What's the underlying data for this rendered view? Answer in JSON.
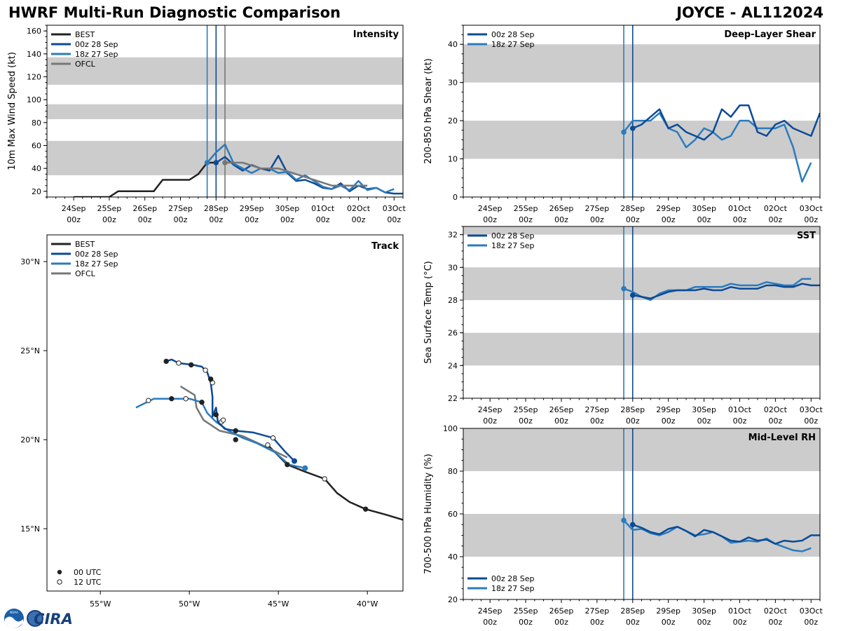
{
  "header": {
    "title": "HWRF Multi-Run Diagnostic Comparison",
    "storm": "JOYCE - AL112024"
  },
  "logo": {
    "text": "CIRA",
    "agency": "NOAA"
  },
  "colors": {
    "BEST": "#222222",
    "00z 28 Sep": "#0b4a96",
    "18z 27 Sep": "#2b7bbd",
    "OFCL": "#777777",
    "band": "#cccccc"
  },
  "time_ticks": [
    {
      "day": 0,
      "l1": "24Sep",
      "l2": "00z"
    },
    {
      "day": 1,
      "l1": "25Sep",
      "l2": "00z"
    },
    {
      "day": 2,
      "l1": "26Sep",
      "l2": "00z"
    },
    {
      "day": 3,
      "l1": "27Sep",
      "l2": "00z"
    },
    {
      "day": 4,
      "l1": "28Sep",
      "l2": "00z"
    },
    {
      "day": 5,
      "l1": "29Sep",
      "l2": "00z"
    },
    {
      "day": 6,
      "l1": "30Sep",
      "l2": "00z"
    },
    {
      "day": 7,
      "l1": "01Oct",
      "l2": "00z"
    },
    {
      "day": 8,
      "l1": "02Oct",
      "l2": "00z"
    },
    {
      "day": 9,
      "l1": "03Oct",
      "l2": "00z"
    }
  ],
  "chart_data": [
    {
      "id": "intensity",
      "type": "line",
      "title": "Intensity",
      "ylabel": "10m Max Wind Speed (kt)",
      "xlim": [
        -0.75,
        9.25
      ],
      "ylim": [
        15,
        165
      ],
      "yticks": [
        20,
        40,
        60,
        80,
        100,
        120,
        140,
        160
      ],
      "bands": [
        [
          34,
          64
        ],
        [
          83,
          96
        ],
        [
          113,
          137
        ]
      ],
      "vlines": [
        {
          "x": 3.75,
          "series": "18z 27 Sep"
        },
        {
          "x": 4.0,
          "series": "00z 28 Sep"
        },
        {
          "x": 4.25,
          "series": "OFCL"
        }
      ],
      "legend": [
        "BEST",
        "00z 28 Sep",
        "18z 27 Sep",
        "OFCL"
      ],
      "legend_position": "top-left",
      "series": [
        {
          "name": "BEST",
          "x": [
            0.0,
            0.25,
            0.5,
            0.75,
            1.0,
            1.25,
            1.5,
            1.75,
            2.0,
            2.25,
            2.5,
            2.75,
            3.0,
            3.25,
            3.5,
            3.75,
            4.0
          ],
          "y": [
            15,
            15,
            15,
            15,
            15,
            20,
            20,
            20,
            20,
            20,
            30,
            30,
            30,
            30,
            35,
            45,
            45
          ]
        },
        {
          "name": "00z 28 Sep",
          "x": [
            4.0,
            4.25,
            4.5,
            4.75,
            5.0,
            5.25,
            5.5,
            5.75,
            6.0,
            6.25,
            6.5,
            6.75,
            7.0,
            7.25,
            7.5,
            7.75,
            8.0,
            8.25,
            8.5,
            8.75,
            9.0,
            9.25
          ],
          "y": [
            45,
            50,
            43,
            38,
            43,
            40,
            38,
            51,
            36,
            29,
            30,
            27,
            23,
            22,
            27,
            20,
            25,
            22,
            23,
            19,
            18,
            18
          ],
          "marker": 0
        },
        {
          "name": "18z 27 Sep",
          "x": [
            3.75,
            4.0,
            4.25,
            4.5,
            4.75,
            5.0,
            5.25,
            5.5,
            5.75,
            6.0,
            6.25,
            6.5,
            6.75,
            7.0,
            7.25,
            7.5,
            7.75,
            8.0,
            8.25,
            8.5,
            8.75,
            9.0
          ],
          "y": [
            45,
            54,
            61,
            44,
            40,
            36,
            40,
            40,
            36,
            37,
            30,
            34,
            29,
            24,
            22,
            25,
            21,
            29,
            21,
            23,
            19,
            22
          ],
          "marker": 0
        },
        {
          "name": "OFCL",
          "x": [
            4.25,
            4.75,
            5.25,
            5.75,
            6.25,
            6.75,
            7.25,
            7.75,
            8.25
          ],
          "y": [
            45,
            45,
            40,
            40,
            35,
            30,
            25,
            25,
            25
          ],
          "marker": 0
        }
      ]
    },
    {
      "id": "shear",
      "type": "line",
      "title": "Deep-Layer Shear",
      "ylabel": "200-850 hPa Shear (kt)",
      "xlim": [
        -0.75,
        9.25
      ],
      "ylim": [
        0,
        45
      ],
      "yticks": [
        0,
        10,
        20,
        30,
        40
      ],
      "bands": [
        [
          10,
          20
        ],
        [
          30,
          40
        ]
      ],
      "vlines": [
        {
          "x": 3.75,
          "series": "18z 27 Sep"
        },
        {
          "x": 4.0,
          "series": "00z 28 Sep"
        }
      ],
      "legend": [
        "00z 28 Sep",
        "18z 27 Sep"
      ],
      "legend_position": "top-left",
      "series": [
        {
          "name": "18z 27 Sep",
          "x": [
            3.75,
            4.0,
            4.25,
            4.5,
            4.75,
            5.0,
            5.25,
            5.5,
            5.75,
            6.0,
            6.25,
            6.5,
            6.75,
            7.0,
            7.25,
            7.5,
            7.75,
            8.0,
            8.25,
            8.5,
            8.75,
            9.0
          ],
          "y": [
            17,
            20,
            20,
            20,
            22,
            18,
            17,
            13,
            15,
            18,
            17,
            15,
            16,
            20,
            20,
            18,
            18,
            18,
            19,
            13,
            4,
            9
          ],
          "marker": 0
        },
        {
          "name": "00z 28 Sep",
          "x": [
            4.0,
            4.25,
            4.5,
            4.75,
            5.0,
            5.25,
            5.5,
            5.75,
            6.0,
            6.25,
            6.5,
            6.75,
            7.0,
            7.25,
            7.5,
            7.75,
            8.0,
            8.25,
            8.5,
            8.75,
            9.0,
            9.25
          ],
          "y": [
            18,
            19,
            21,
            23,
            18,
            19,
            17,
            16,
            15,
            17,
            23,
            21,
            24,
            24,
            17,
            16,
            19,
            20,
            18,
            17,
            16,
            22
          ],
          "marker": 0
        }
      ]
    },
    {
      "id": "track",
      "type": "scatter",
      "title": "Track",
      "xlim": [
        -58,
        -38
      ],
      "ylim": [
        11.5,
        31.5
      ],
      "xticks": [
        {
          "v": -55,
          "label": "55°W"
        },
        {
          "v": -50,
          "label": "50°W"
        },
        {
          "v": -45,
          "label": "45°W"
        },
        {
          "v": -40,
          "label": "40°W"
        }
      ],
      "yticks": [
        {
          "v": 15,
          "label": "15°N"
        },
        {
          "v": 20,
          "label": "20°N"
        },
        {
          "v": 25,
          "label": "25°N"
        },
        {
          "v": 30,
          "label": "30°N"
        }
      ],
      "legend": [
        "BEST",
        "00z 28 Sep",
        "18z 27 Sep",
        "OFCL"
      ],
      "marker_legend": {
        "solid": "00 UTC",
        "open": "12 UTC"
      },
      "series": [
        {
          "name": "BEST",
          "lon": [
            -38.0,
            -39.0,
            -40.1,
            -41.0,
            -41.7,
            -42.4,
            -43.5,
            -44.0,
            -44.5,
            -45.2,
            -45.6
          ],
          "lat": [
            15.5,
            15.8,
            16.1,
            16.5,
            17.0,
            17.8,
            18.2,
            18.4,
            18.6,
            19.3,
            19.7
          ],
          "markers": [
            {
              "lon": -40.1,
              "lat": 16.1,
              "fill": "solid"
            },
            {
              "lon": -42.4,
              "lat": 17.8,
              "fill": "open"
            },
            {
              "lon": -44.5,
              "lat": 18.6,
              "fill": "solid"
            }
          ]
        },
        {
          "name": "18z 27 Sep",
          "lon": [
            -43.5,
            -44.4,
            -45.2,
            -46.2,
            -47.0,
            -47.8,
            -48.5,
            -49.0,
            -49.3,
            -50.0,
            -50.5,
            -51.0,
            -52.0,
            -53.0
          ],
          "lat": [
            18.4,
            18.6,
            19.3,
            19.8,
            20.1,
            20.5,
            21.0,
            21.5,
            22.1,
            22.3,
            22.3,
            22.3,
            22.3,
            21.8
          ],
          "markers": [
            {
              "lon": -43.5,
              "lat": 18.4,
              "fill": "solid"
            },
            {
              "lon": -45.6,
              "lat": 19.7,
              "fill": "open"
            },
            {
              "lon": -47.4,
              "lat": 20.0,
              "fill": "solid"
            },
            {
              "lon": -48.2,
              "lat": 21.0,
              "fill": "open"
            },
            {
              "lon": -49.3,
              "lat": 22.1,
              "fill": "solid"
            },
            {
              "lon": -50.2,
              "lat": 22.3,
              "fill": "open"
            },
            {
              "lon": -51.0,
              "lat": 22.3,
              "fill": "solid"
            },
            {
              "lon": -52.3,
              "lat": 22.2,
              "fill": "open"
            }
          ]
        },
        {
          "name": "00z 28 Sep",
          "lon": [
            -44.1,
            -44.6,
            -45.3,
            -46.4,
            -47.4,
            -48.0,
            -48.4,
            -48.5,
            -48.7,
            -48.7,
            -48.8,
            -49.0,
            -49.3,
            -49.8,
            -50.6,
            -51.0,
            -51.3
          ],
          "lat": [
            18.8,
            19.3,
            20.1,
            20.4,
            20.5,
            20.6,
            21.0,
            21.8,
            21.3,
            22.4,
            23.2,
            23.8,
            24.1,
            24.2,
            24.3,
            24.5,
            24.4
          ],
          "markers": [
            {
              "lon": -44.1,
              "lat": 18.8,
              "fill": "solid"
            },
            {
              "lon": -45.3,
              "lat": 20.1,
              "fill": "open"
            },
            {
              "lon": -47.4,
              "lat": 20.5,
              "fill": "solid"
            },
            {
              "lon": -48.1,
              "lat": 21.1,
              "fill": "open"
            },
            {
              "lon": -48.5,
              "lat": 21.4,
              "fill": "solid"
            },
            {
              "lon": -48.7,
              "lat": 23.2,
              "fill": "open"
            },
            {
              "lon": -48.8,
              "lat": 23.4,
              "fill": "solid"
            },
            {
              "lon": -49.1,
              "lat": 23.9,
              "fill": "open"
            },
            {
              "lon": -49.9,
              "lat": 24.2,
              "fill": "solid"
            },
            {
              "lon": -50.6,
              "lat": 24.3,
              "fill": "open"
            },
            {
              "lon": -51.3,
              "lat": 24.4,
              "fill": "solid"
            }
          ]
        },
        {
          "name": "OFCL",
          "lon": [
            -44.5,
            -45.7,
            -47.0,
            -48.3,
            -49.2,
            -49.6,
            -49.7,
            -50.5
          ],
          "lat": [
            19.0,
            19.6,
            20.2,
            20.5,
            21.1,
            21.8,
            22.5,
            23.0
          ],
          "markers": []
        }
      ]
    },
    {
      "id": "sst",
      "type": "line",
      "title": "SST",
      "ylabel": "Sea Surface Temp (°C)",
      "xlim": [
        -0.75,
        9.25
      ],
      "ylim": [
        22,
        32.5
      ],
      "yticks": [
        22,
        24,
        26,
        28,
        30,
        32
      ],
      "bands": [
        [
          24,
          26
        ],
        [
          28,
          30
        ],
        [
          32,
          32.5
        ]
      ],
      "vlines": [
        {
          "x": 3.75,
          "series": "18z 27 Sep"
        },
        {
          "x": 4.0,
          "series": "00z 28 Sep"
        }
      ],
      "legend": [
        "00z 28 Sep",
        "18z 27 Sep"
      ],
      "legend_position": "top-left",
      "series": [
        {
          "name": "18z 27 Sep",
          "x": [
            3.75,
            4.0,
            4.25,
            4.5,
            4.75,
            5.0,
            5.25,
            5.5,
            5.75,
            6.0,
            6.25,
            6.5,
            6.75,
            7.0,
            7.25,
            7.5,
            7.75,
            8.0,
            8.25,
            8.5,
            8.75,
            9.0
          ],
          "y": [
            28.7,
            28.5,
            28.2,
            28.0,
            28.4,
            28.6,
            28.6,
            28.6,
            28.8,
            28.8,
            28.8,
            28.8,
            29.0,
            28.9,
            28.9,
            28.9,
            29.1,
            29.0,
            28.9,
            28.9,
            29.3,
            29.3
          ],
          "marker": 0
        },
        {
          "name": "00z 28 Sep",
          "x": [
            4.0,
            4.25,
            4.5,
            4.75,
            5.0,
            5.25,
            5.5,
            5.75,
            6.0,
            6.25,
            6.5,
            6.75,
            7.0,
            7.25,
            7.5,
            7.75,
            8.0,
            8.25,
            8.5,
            8.75,
            9.0,
            9.25
          ],
          "y": [
            28.3,
            28.2,
            28.1,
            28.3,
            28.5,
            28.6,
            28.6,
            28.6,
            28.7,
            28.6,
            28.6,
            28.8,
            28.7,
            28.7,
            28.7,
            28.9,
            28.9,
            28.8,
            28.8,
            29.0,
            28.9,
            28.9
          ],
          "marker": 0
        }
      ]
    },
    {
      "id": "rh",
      "type": "line",
      "title": "Mid-Level RH",
      "ylabel": "700-500 hPa Humidity (%)",
      "xlim": [
        -0.75,
        9.25
      ],
      "ylim": [
        20,
        100
      ],
      "yticks": [
        20,
        40,
        60,
        80,
        100
      ],
      "bands": [
        [
          40,
          60
        ],
        [
          80,
          100
        ]
      ],
      "vlines": [
        {
          "x": 3.75,
          "series": "18z 27 Sep"
        },
        {
          "x": 4.0,
          "series": "00z 28 Sep"
        }
      ],
      "legend": [
        "00z 28 Sep",
        "18z 27 Sep"
      ],
      "legend_position": "bottom-left",
      "series": [
        {
          "name": "18z 27 Sep",
          "x": [
            3.75,
            4.0,
            4.25,
            4.5,
            4.75,
            5.0,
            5.25,
            5.5,
            5.75,
            6.0,
            6.25,
            6.5,
            6.75,
            7.0,
            7.25,
            7.5,
            7.75,
            8.0,
            8.25,
            8.5,
            8.75,
            9.0
          ],
          "y": [
            57,
            52.5,
            53,
            51,
            50,
            51.5,
            54,
            52,
            50,
            50.5,
            51.5,
            49.5,
            46.5,
            47,
            47.5,
            47,
            48.5,
            46,
            44.5,
            43,
            42.5,
            44
          ],
          "marker": 0
        },
        {
          "name": "00z 28 Sep",
          "x": [
            4.0,
            4.25,
            4.5,
            4.75,
            5.0,
            5.25,
            5.5,
            5.75,
            6.0,
            6.25,
            6.5,
            6.75,
            7.0,
            7.25,
            7.5,
            7.75,
            8.0,
            8.25,
            8.5,
            8.75,
            9.0,
            9.25
          ],
          "y": [
            55,
            53.5,
            51.5,
            50.5,
            53,
            54,
            52,
            49.5,
            52.5,
            51.5,
            49.5,
            47.5,
            47,
            49,
            47.5,
            48,
            46,
            47.5,
            47,
            47.5,
            50,
            50
          ],
          "marker": 0
        }
      ]
    }
  ]
}
